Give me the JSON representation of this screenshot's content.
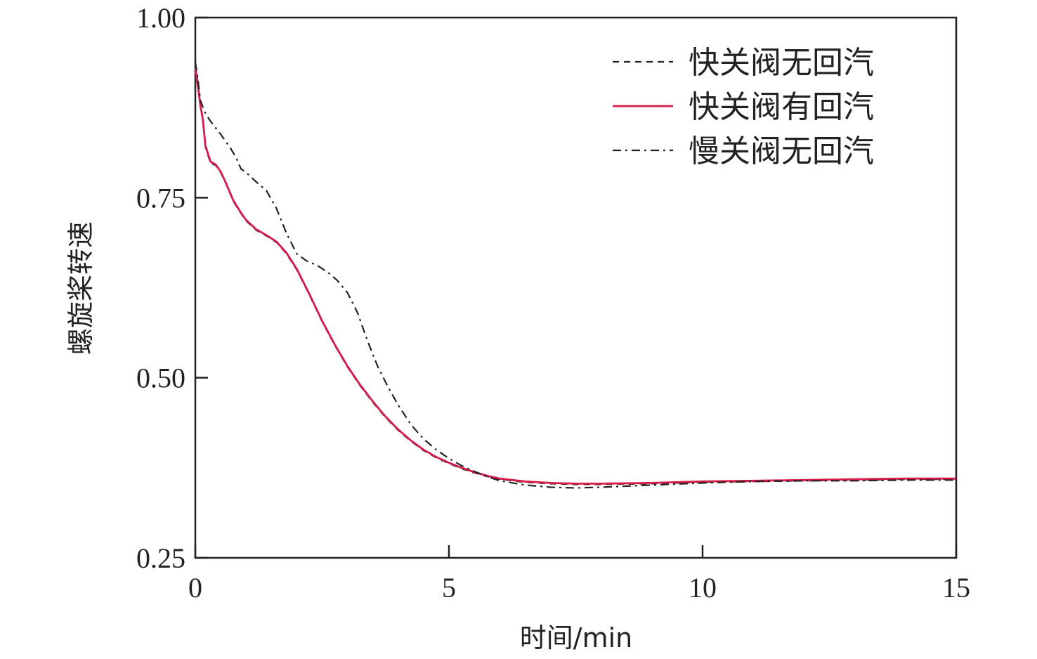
{
  "chart_data": {
    "type": "line",
    "title": "",
    "xlabel": "时间/min",
    "ylabel": "螺旋桨转速",
    "xlim": [
      0,
      15
    ],
    "ylim": [
      0.25,
      1.0
    ],
    "xticks": [
      0,
      5,
      10,
      15
    ],
    "xtick_labels": [
      "0",
      "5",
      "10",
      "15"
    ],
    "yticks": [
      0.25,
      0.5,
      0.75,
      1.0
    ],
    "ytick_labels": [
      "0.25",
      "0.50",
      "0.75",
      "1.00"
    ],
    "grid": false,
    "legend_position": "top-right",
    "series": [
      {
        "name": "快关阀无回汽",
        "style": "dashed",
        "color": "#222222",
        "x": [
          0,
          0.05,
          0.1,
          0.15,
          0.2,
          0.3,
          0.4,
          0.5,
          0.6,
          0.75,
          0.9,
          1.0,
          1.2,
          1.4,
          1.6,
          1.8,
          2.0,
          2.25,
          2.5,
          2.75,
          3.0,
          3.25,
          3.5,
          3.75,
          4.0,
          4.25,
          4.5,
          4.75,
          5.0,
          5.25,
          5.5,
          5.75,
          6.0,
          6.5,
          7.0,
          7.5,
          8.0,
          9.0,
          10.0,
          11.0,
          12.0,
          13.0,
          14.0,
          15.0
        ],
        "y": [
          0.934,
          0.91,
          0.88,
          0.86,
          0.82,
          0.798,
          0.795,
          0.785,
          0.77,
          0.745,
          0.728,
          0.718,
          0.705,
          0.697,
          0.688,
          0.672,
          0.65,
          0.615,
          0.578,
          0.545,
          0.515,
          0.489,
          0.466,
          0.445,
          0.427,
          0.412,
          0.399,
          0.389,
          0.381,
          0.374,
          0.368,
          0.363,
          0.359,
          0.355,
          0.353,
          0.352,
          0.352,
          0.353,
          0.355,
          0.356,
          0.357,
          0.358,
          0.359,
          0.359
        ]
      },
      {
        "name": "快关阀有回汽",
        "style": "solid",
        "color": "#d81b4a",
        "x": [
          0,
          0.05,
          0.1,
          0.15,
          0.2,
          0.3,
          0.4,
          0.5,
          0.6,
          0.75,
          0.9,
          1.0,
          1.2,
          1.4,
          1.6,
          1.8,
          2.0,
          2.25,
          2.5,
          2.75,
          3.0,
          3.25,
          3.5,
          3.75,
          4.0,
          4.25,
          4.5,
          4.75,
          5.0,
          5.25,
          5.5,
          5.75,
          6.0,
          6.5,
          7.0,
          7.5,
          8.0,
          9.0,
          10.0,
          11.0,
          12.0,
          13.0,
          14.0,
          15.0
        ],
        "y": [
          0.93,
          0.905,
          0.878,
          0.858,
          0.822,
          0.8,
          0.796,
          0.786,
          0.771,
          0.746,
          0.729,
          0.719,
          0.706,
          0.698,
          0.689,
          0.673,
          0.651,
          0.616,
          0.579,
          0.546,
          0.516,
          0.49,
          0.467,
          0.446,
          0.428,
          0.413,
          0.4,
          0.39,
          0.382,
          0.375,
          0.369,
          0.364,
          0.36,
          0.356,
          0.354,
          0.353,
          0.353,
          0.354,
          0.356,
          0.357,
          0.358,
          0.359,
          0.36,
          0.36
        ]
      },
      {
        "name": "慢关阀无回汽",
        "style": "dashdot",
        "color": "#222222",
        "x": [
          0,
          0.05,
          0.1,
          0.2,
          0.3,
          0.4,
          0.5,
          0.6,
          0.7,
          0.8,
          0.9,
          1.0,
          1.2,
          1.4,
          1.6,
          1.8,
          2.0,
          2.2,
          2.4,
          2.6,
          2.8,
          3.0,
          3.2,
          3.4,
          3.6,
          3.8,
          4.0,
          4.25,
          4.5,
          4.75,
          5.0,
          5.25,
          5.5,
          5.75,
          6.0,
          6.5,
          7.0,
          7.5,
          8.0,
          9.0,
          10.0,
          11.0,
          12.0,
          13.0,
          14.0,
          15.0
        ],
        "y": [
          0.938,
          0.915,
          0.885,
          0.867,
          0.856,
          0.847,
          0.838,
          0.828,
          0.818,
          0.806,
          0.79,
          0.785,
          0.772,
          0.76,
          0.735,
          0.7,
          0.672,
          0.662,
          0.656,
          0.647,
          0.635,
          0.618,
          0.59,
          0.55,
          0.515,
          0.487,
          0.462,
          0.435,
          0.415,
          0.4,
          0.388,
          0.378,
          0.37,
          0.363,
          0.357,
          0.351,
          0.348,
          0.347,
          0.348,
          0.351,
          0.354,
          0.356,
          0.357,
          0.357,
          0.358,
          0.358
        ]
      }
    ]
  }
}
